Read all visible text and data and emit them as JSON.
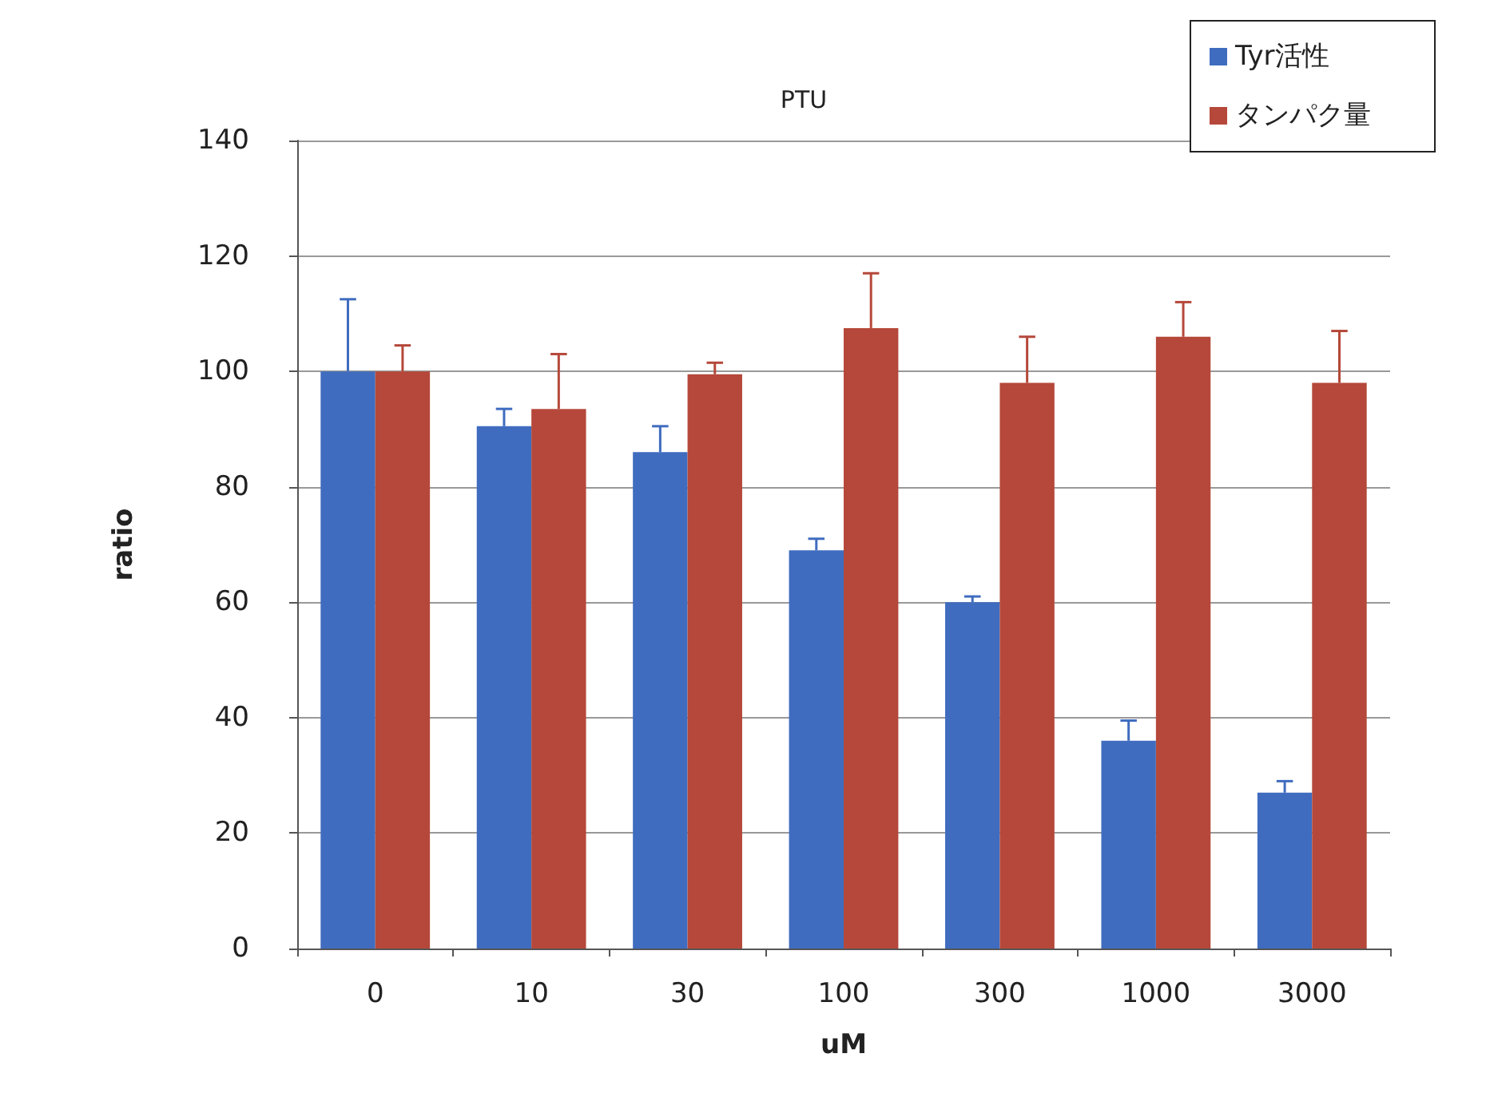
{
  "chart_data": {
    "type": "bar",
    "title": "PTU",
    "xlabel": "uM",
    "ylabel": "ratio",
    "categories": [
      "0",
      "10",
      "30",
      "100",
      "300",
      "1000",
      "3000"
    ],
    "series": [
      {
        "name": "Tyr活性",
        "color": "#3f6cbf",
        "values": [
          100,
          90.5,
          86,
          69,
          60,
          36,
          27
        ],
        "errors": [
          [
            100,
            112.5
          ],
          [
            90.5,
            93.5
          ],
          [
            86,
            90.5
          ],
          [
            69,
            71
          ],
          [
            60,
            61
          ],
          [
            36,
            39.5
          ],
          [
            27,
            29
          ]
        ]
      },
      {
        "name": "タンパク量",
        "color": "#b5483a",
        "values": [
          100,
          93.5,
          99.5,
          107.5,
          98,
          106,
          98
        ],
        "errors": [
          [
            100,
            104.5
          ],
          [
            93.5,
            103
          ],
          [
            99.5,
            101.5
          ],
          [
            107.5,
            117
          ],
          [
            98,
            106
          ],
          [
            106,
            112
          ],
          [
            98,
            107
          ]
        ]
      }
    ],
    "ylim": [
      0,
      140
    ],
    "yticks": [
      0,
      20,
      40,
      60,
      80,
      100,
      120,
      140
    ],
    "grid": "y",
    "legend": "top right"
  }
}
